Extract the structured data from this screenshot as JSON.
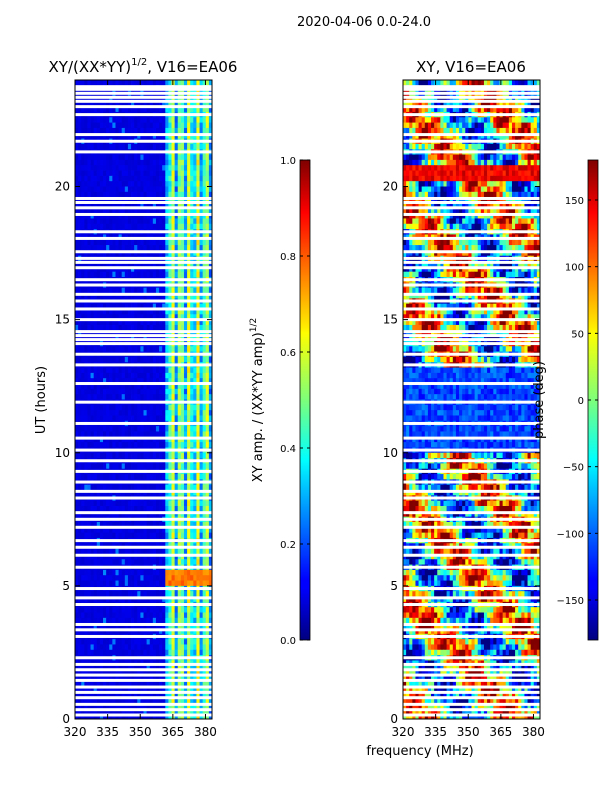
{
  "figure_title": "2020-04-06 0.0-24.0",
  "chart_data": [
    {
      "type": "heatmap",
      "title_main": "XY/(XX*YY)",
      "title_sup": "1/2",
      "title_suffix": ", V16=EA06",
      "xlabel": "",
      "ylabel": "UT (hours)",
      "xlim": [
        320,
        383
      ],
      "ylim": [
        0,
        24
      ],
      "xticks": [
        320,
        335,
        350,
        365,
        380
      ],
      "yticks": [
        0,
        5,
        10,
        15,
        20
      ],
      "colorbar": {
        "label_main": "XY amp. / (XX*YY amp)",
        "label_sup": "1/2",
        "range": [
          0.0,
          1.0
        ],
        "ticks": [
          "0.0",
          "0.2",
          "0.4",
          "0.6",
          "0.8",
          "1.0"
        ],
        "tick_values": [
          0.0,
          0.2,
          0.4,
          0.6,
          0.8,
          1.0
        ]
      },
      "features": {
        "low_band_value": 0.08,
        "high_band_start_mhz": 361,
        "high_band_value": 0.45,
        "bright_patch_hours": [
          5.0,
          5.6
        ],
        "bright_patch_value": 0.72
      }
    },
    {
      "type": "heatmap",
      "title": "XY, V16=EA06",
      "xlabel": "frequency (MHz)",
      "ylabel": "",
      "xlim": [
        320,
        383
      ],
      "ylim": [
        0,
        24
      ],
      "xticks": [
        320,
        335,
        350,
        365,
        380
      ],
      "yticks": [
        0,
        5,
        10,
        15,
        20
      ],
      "colorbar": {
        "label": "phase (deg)",
        "range": [
          -180,
          180
        ],
        "ticks": [
          "−150",
          "−100",
          "−50",
          "0",
          "50",
          "100",
          "150"
        ],
        "tick_values": [
          -150,
          -100,
          -50,
          0,
          50,
          100,
          150
        ]
      },
      "features": {
        "blue_band_hours": [
          10.0,
          13.3
        ],
        "blue_band_value": -110,
        "red_band_hours": [
          20.1,
          20.8
        ],
        "red_band_value": 140
      }
    }
  ],
  "flagged_rows_hours": [
    0.15,
    0.35,
    0.55,
    0.8,
    1.0,
    1.2,
    1.45,
    1.65,
    1.85,
    2.05,
    2.3,
    3.1,
    3.35,
    3.55,
    4.3,
    4.55,
    4.9,
    5.7,
    6.15,
    6.45,
    6.7,
    7.2,
    7.5,
    7.75,
    8.3,
    8.55,
    8.9,
    9.3,
    9.7,
    10.1,
    10.55,
    11.1,
    11.9,
    12.6,
    13.3,
    13.7,
    14.1,
    14.25,
    14.4,
    14.55,
    15.0,
    15.4,
    15.7,
    15.95,
    16.3,
    16.5,
    16.95,
    17.15,
    17.3,
    17.55,
    18.05,
    18.3,
    18.95,
    19.2,
    19.4,
    19.55,
    21.3,
    21.7,
    21.95,
    22.7,
    23.0,
    23.2,
    23.35,
    23.5,
    23.65,
    23.75
  ]
}
